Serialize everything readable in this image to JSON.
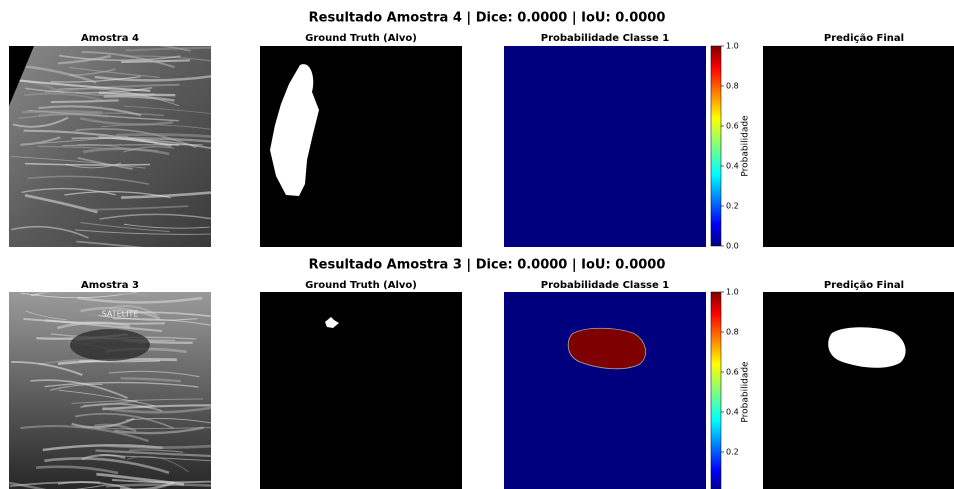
{
  "figures": [
    {
      "title": "Resultado Amostra 4 | Dice: 0.0000 | IoU: 0.0000",
      "panels": [
        "Amostra 4",
        "Ground Truth (Alvo)",
        "Probabilidade Classe 1",
        "Predição Final"
      ],
      "colorbar": {
        "label": "Probabilidade",
        "lim": [
          0,
          1
        ],
        "ticks": [
          {
            "value": 0,
            "label": "0.0"
          },
          {
            "value": 0.2,
            "label": "0.2"
          },
          {
            "value": 0.4,
            "label": "0.4"
          },
          {
            "value": 0.6,
            "label": "0.6"
          },
          {
            "value": 0.8,
            "label": "0.8"
          },
          {
            "value": 1,
            "label": "1.0"
          }
        ]
      }
    },
    {
      "title": "Resultado Amostra 3 | Dice: 0.0000 | IoU: 0.0000",
      "panels": [
        "Amostra 3",
        "Ground Truth (Alvo)",
        "Probabilidade Classe 1",
        "Predição Final"
      ],
      "image_text": "SATELITE",
      "colorbar": {
        "label": "Probabilidade",
        "lim": [
          0,
          1
        ],
        "ticks": [
          {
            "value": 0.2,
            "label": "0.2"
          },
          {
            "value": 0.4,
            "label": "0.4"
          },
          {
            "value": 0.6,
            "label": "0.6"
          },
          {
            "value": 0.8,
            "label": "0.8"
          },
          {
            "value": 1,
            "label": "1.0"
          }
        ]
      }
    }
  ]
}
